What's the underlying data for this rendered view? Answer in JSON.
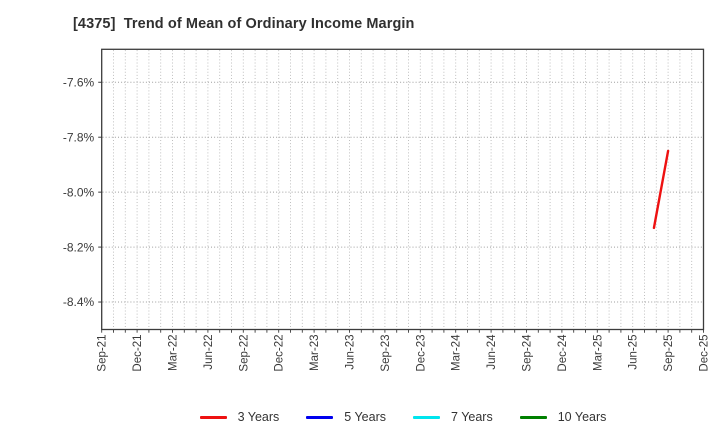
{
  "chart_data": {
    "type": "line",
    "title": "[4375]  Trend of Mean of Ordinary Income Margin",
    "xlabel": "",
    "ylabel": "",
    "x_tick_labels": [
      "Sep-21",
      "Dec-21",
      "Mar-22",
      "Jun-22",
      "Sep-22",
      "Dec-22",
      "Mar-23",
      "Jun-23",
      "Sep-23",
      "Dec-23",
      "Mar-24",
      "Jun-24",
      "Sep-24",
      "Dec-24",
      "Mar-25",
      "Jun-25",
      "Sep-25",
      "Dec-25"
    ],
    "x_axis_unit": "months since Sep-21",
    "xlim_months": [
      0,
      51
    ],
    "x_minor_grid": "monthly dotted vertical gridlines",
    "y_ticks": [
      {
        "value": -7.6,
        "label": "-7.6%"
      },
      {
        "value": -7.8,
        "label": "-7.8%"
      },
      {
        "value": -8.0,
        "label": "-8.0%"
      },
      {
        "value": -8.2,
        "label": "-8.2%"
      },
      {
        "value": -8.4,
        "label": "-8.4%"
      }
    ],
    "ylim": [
      -8.5,
      -7.48
    ],
    "grid": "dotted gray, on",
    "series": [
      {
        "name": "3 Years",
        "color": "#ee1111",
        "points": [
          {
            "date": "Aug-25",
            "month": 46.8,
            "value": -8.13
          },
          {
            "date": "Sep-25",
            "month": 48.0,
            "value": -7.85
          }
        ]
      },
      {
        "name": "5 Years",
        "color": "#0000ee",
        "points": []
      },
      {
        "name": "7 Years",
        "color": "#00e5ee",
        "points": []
      },
      {
        "name": "10 Years",
        "color": "#008000",
        "points": []
      }
    ],
    "legend": {
      "position": "bottom-center",
      "items": [
        {
          "label": "3 Years",
          "color": "#ee1111"
        },
        {
          "label": "5 Years",
          "color": "#0000ee"
        },
        {
          "label": "7 Years",
          "color": "#00e5ee"
        },
        {
          "label": "10 Years",
          "color": "#008000"
        }
      ]
    }
  }
}
